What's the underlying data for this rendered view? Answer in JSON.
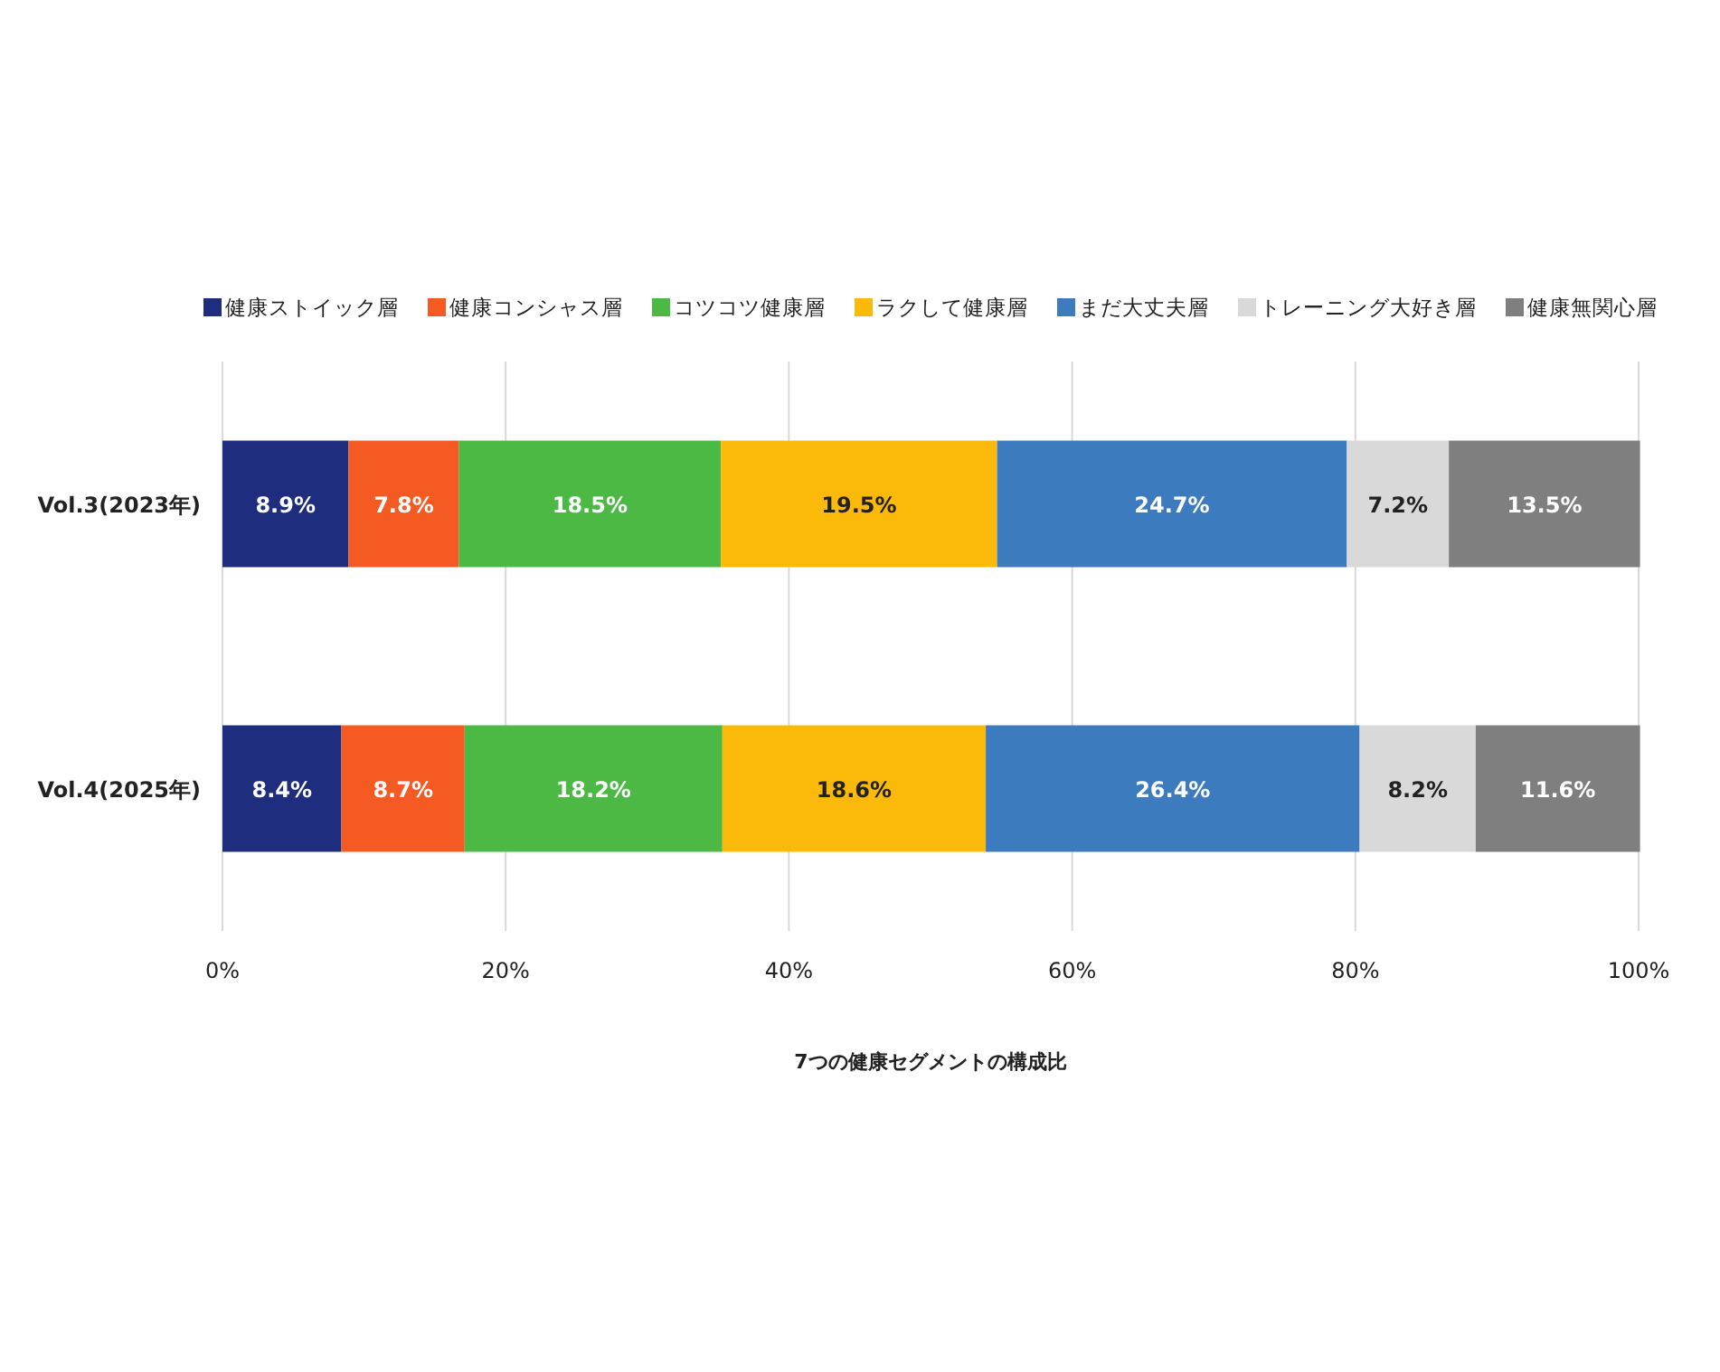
{
  "chart_data": {
    "type": "bar",
    "orientation": "horizontal",
    "stacked": true,
    "xlabel": "7つの健康セグメントの構成比",
    "categories": [
      "Vol.3(2023年)",
      "Vol.4(2025年)"
    ],
    "xlim": [
      0,
      100
    ],
    "xticks": [
      {
        "value": 0,
        "label": "0%"
      },
      {
        "value": 20,
        "label": "20%"
      },
      {
        "value": 40,
        "label": "40%"
      },
      {
        "value": 60,
        "label": "60%"
      },
      {
        "value": 80,
        "label": "80%"
      },
      {
        "value": 100,
        "label": "100%"
      }
    ],
    "grid": "x",
    "legend": "top",
    "series": [
      {
        "name": "健康ストイック層",
        "color": "#1f2d7f",
        "values": [
          8.9,
          8.4
        ],
        "value_labels": [
          "8.9%",
          "8.4%"
        ]
      },
      {
        "name": "健康コンシャス層",
        "color": "#f55a23",
        "values": [
          7.8,
          8.7
        ],
        "value_labels": [
          "7.8%",
          "8.7%"
        ]
      },
      {
        "name": "コツコツ健康層",
        "color": "#4cb944",
        "values": [
          18.5,
          18.2
        ],
        "value_labels": [
          "18.5%",
          "18.2%"
        ]
      },
      {
        "name": "ラクして健康層",
        "color": "#fbb90a",
        "values": [
          19.5,
          18.6
        ],
        "value_labels": [
          "19.5%",
          "18.6%"
        ]
      },
      {
        "name": "まだ大丈夫層",
        "color": "#3d7bbf",
        "values": [
          24.7,
          26.4
        ],
        "value_labels": [
          "24.7%",
          "26.4%"
        ]
      },
      {
        "name": "トレーニング大好き層",
        "color": "#d9d9d9",
        "values": [
          7.2,
          8.2
        ],
        "value_labels": [
          "7.2%",
          "8.2%"
        ]
      },
      {
        "name": "健康無関心層",
        "color": "#7f7f7f",
        "values": [
          13.5,
          11.6
        ],
        "value_labels": [
          "13.5%",
          "11.6%"
        ]
      }
    ]
  }
}
